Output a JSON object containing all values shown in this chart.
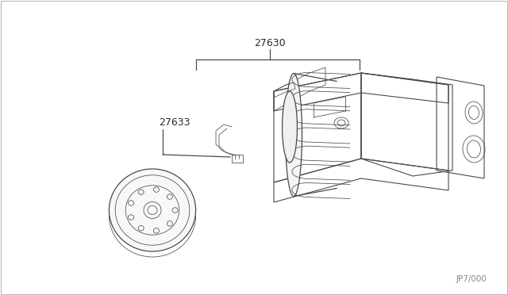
{
  "background_color": "#ffffff",
  "border_color": "#cccccc",
  "line_color": "#4a4a4a",
  "text_color": "#2a2a2a",
  "label_27630": "27630",
  "label_27633": "27633",
  "watermark": "JP7/000",
  "fig_width": 6.4,
  "fig_height": 3.72,
  "lw_main": 0.9,
  "lw_thin": 0.55,
  "lw_body": 0.8
}
